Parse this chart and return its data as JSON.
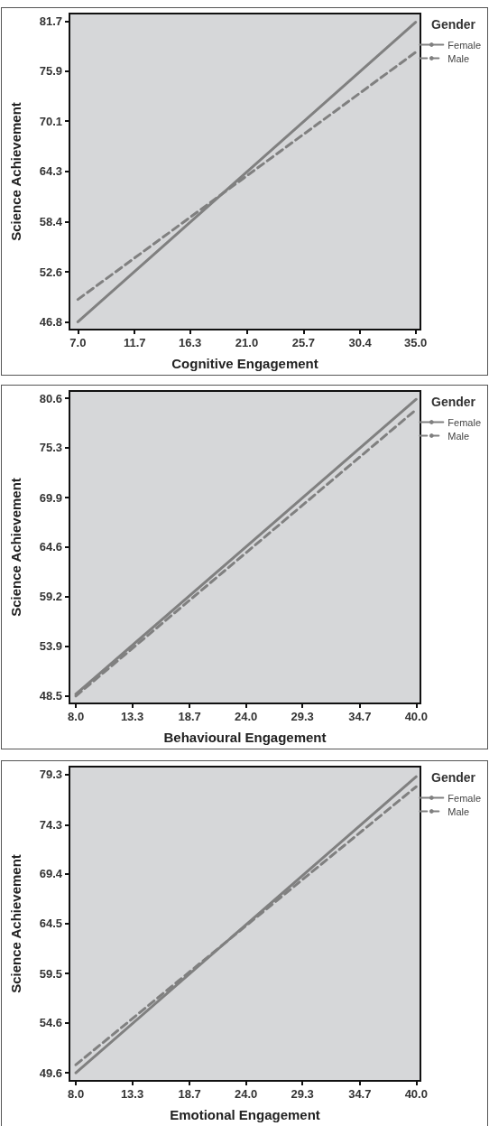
{
  "chart_data": [
    {
      "type": "line",
      "xlabel": "Cognitive Engagement",
      "ylabel": "Science Achievement",
      "legend_title": "Gender",
      "legend": "top right",
      "marker": "none",
      "grid": false,
      "x": [
        7,
        35
      ],
      "series": [
        {
          "name": "Female",
          "color": "#808080",
          "line_style": "solid",
          "values": [
            46.8,
            81.6
          ]
        },
        {
          "name": "Male",
          "color": "#808080",
          "line_style": "dashed",
          "values": [
            49.4,
            78.1
          ]
        }
      ],
      "xlim": [
        6.3,
        35.4
      ],
      "ylim": [
        45.9,
        82.6
      ],
      "xticks": [
        {
          "value": 7,
          "label": "7.0"
        },
        {
          "value": 11.7,
          "label": "11.7"
        },
        {
          "value": 16.3,
          "label": "16.3"
        },
        {
          "value": 21,
          "label": "21.0"
        },
        {
          "value": 25.7,
          "label": "25.7"
        },
        {
          "value": 30.4,
          "label": "30.4"
        },
        {
          "value": 35,
          "label": "35.0"
        }
      ],
      "yticks": [
        46.8,
        52.6,
        58.4,
        64.3,
        70.1,
        75.9,
        81.7
      ]
    },
    {
      "type": "line",
      "xlabel": "Behavioural Engagement",
      "ylabel": "Science Achievement",
      "legend_title": "Gender",
      "legend": "top right",
      "marker": "none",
      "grid": false,
      "x": [
        8,
        40
      ],
      "series": [
        {
          "name": "Female",
          "color": "#808080",
          "line_style": "solid",
          "values": [
            48.7,
            80.5
          ]
        },
        {
          "name": "Male",
          "color": "#808080",
          "line_style": "dashed",
          "values": [
            48.5,
            79.4
          ]
        }
      ],
      "xlim": [
        7.4,
        40.4
      ],
      "ylim": [
        47.7,
        81.4
      ],
      "xticks": [
        {
          "value": 8,
          "label": "8.0"
        },
        {
          "value": 13.3,
          "label": "13.3"
        },
        {
          "value": 18.7,
          "label": "18.7"
        },
        {
          "value": 24,
          "label": "24.0"
        },
        {
          "value": 29.3,
          "label": "29.3"
        },
        {
          "value": 34.7,
          "label": "34.7"
        },
        {
          "value": 40,
          "label": "40.0"
        }
      ],
      "yticks": [
        48.5,
        53.9,
        59.2,
        64.6,
        69.9,
        75.3,
        80.6
      ]
    },
    {
      "type": "line",
      "xlabel": "Emotional Engagement",
      "ylabel": "Science Achievement",
      "legend_title": "Gender",
      "legend": "top right",
      "marker": "none",
      "grid": false,
      "x": [
        8,
        40
      ],
      "series": [
        {
          "name": "Female",
          "color": "#808080",
          "line_style": "solid",
          "values": [
            49.6,
            79.1
          ]
        },
        {
          "name": "Male",
          "color": "#808080",
          "line_style": "dashed",
          "values": [
            50.4,
            78.1
          ]
        }
      ],
      "xlim": [
        7.4,
        40.4
      ],
      "ylim": [
        48.8,
        80.1
      ],
      "xticks": [
        {
          "value": 8,
          "label": "8.0"
        },
        {
          "value": 13.3,
          "label": "13.3"
        },
        {
          "value": 18.7,
          "label": "18.7"
        },
        {
          "value": 24,
          "label": "24.0"
        },
        {
          "value": 29.3,
          "label": "29.3"
        },
        {
          "value": 34.7,
          "label": "34.7"
        },
        {
          "value": 40,
          "label": "40.0"
        }
      ],
      "yticks": [
        49.6,
        54.6,
        59.5,
        64.5,
        69.4,
        74.3,
        79.3
      ]
    }
  ]
}
